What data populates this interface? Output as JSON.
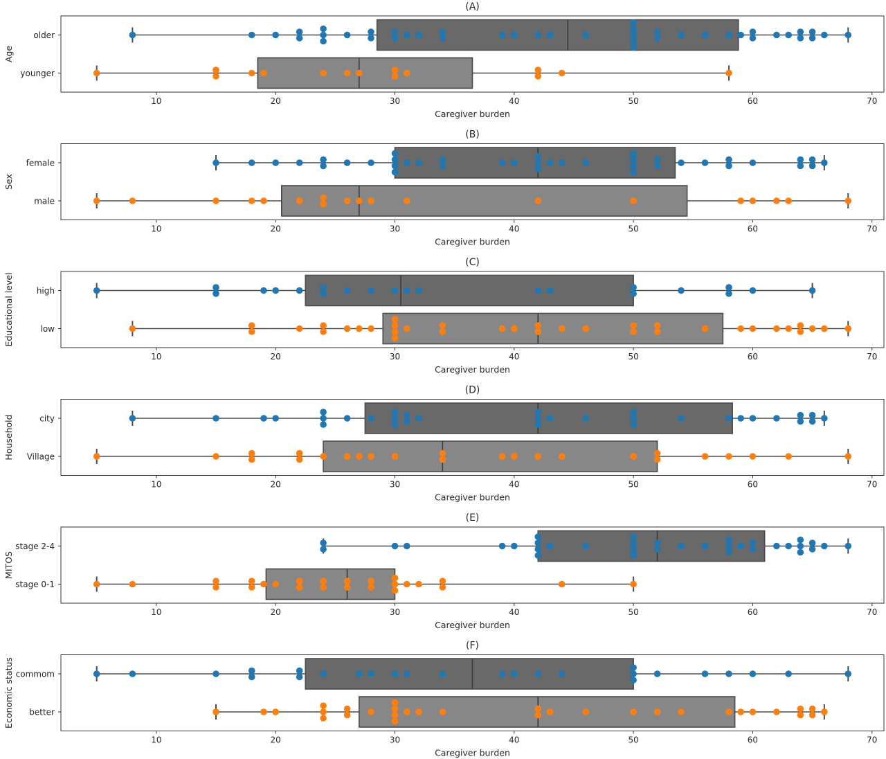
{
  "chart_data": [
    {
      "type": "box",
      "title": "(A)",
      "xlabel": "Caregiver burden",
      "ylabel": "Age",
      "xlim": [
        2,
        71
      ],
      "xticks": [
        10,
        20,
        30,
        40,
        50,
        60,
        70
      ],
      "groups": [
        {
          "category": "older",
          "color": "#1f77b4",
          "box_color": "#696969",
          "whisker_low": 8,
          "q1": 28.5,
          "median": 44.5,
          "q3": 58.8,
          "whisker_high": 68,
          "points": [
            8,
            18,
            20,
            22,
            22,
            24,
            24,
            24,
            26,
            28,
            28,
            30,
            30,
            31,
            32,
            34,
            34,
            39,
            40,
            42,
            43,
            46,
            50,
            50,
            50,
            50,
            50,
            52,
            52,
            54,
            56,
            58,
            59,
            60,
            60,
            62,
            63,
            64,
            64,
            65,
            65,
            66,
            68
          ]
        },
        {
          "category": "younger",
          "color": "#ff7f0e",
          "box_color": "#878787",
          "whisker_low": 5,
          "q1": 18.5,
          "median": 27,
          "q3": 36.5,
          "whisker_high": 58,
          "points": [
            5,
            15,
            15,
            18,
            19,
            24,
            26,
            27,
            30,
            30,
            31,
            42,
            42,
            44,
            58
          ]
        }
      ]
    },
    {
      "type": "box",
      "title": "(B)",
      "xlabel": "Caregiver burden",
      "ylabel": "Sex",
      "xlim": [
        2,
        71
      ],
      "xticks": [
        10,
        20,
        30,
        40,
        50,
        60,
        70
      ],
      "groups": [
        {
          "category": "female",
          "color": "#1f77b4",
          "box_color": "#696969",
          "whisker_low": 15,
          "q1": 30,
          "median": 42,
          "q3": 53.5,
          "whisker_high": 66,
          "points": [
            15,
            18,
            20,
            22,
            24,
            24,
            26,
            28,
            30,
            30,
            30,
            30,
            31,
            32,
            34,
            34,
            39,
            40,
            42,
            42,
            42,
            43,
            44,
            46,
            50,
            50,
            50,
            50,
            52,
            52,
            54,
            56,
            58,
            58,
            60,
            64,
            64,
            65,
            65,
            66
          ]
        },
        {
          "category": "male",
          "color": "#ff7f0e",
          "box_color": "#878787",
          "whisker_low": 5,
          "q1": 20.5,
          "median": 27,
          "q3": 54.5,
          "whisker_high": 68,
          "points": [
            5,
            8,
            15,
            18,
            19,
            22,
            24,
            24,
            26,
            27,
            28,
            31,
            42,
            50,
            59,
            60,
            62,
            63,
            68
          ]
        }
      ]
    },
    {
      "type": "box",
      "title": "(C)",
      "xlabel": "Caregiver burden",
      "ylabel": "Educational level",
      "xlim": [
        2,
        71
      ],
      "xticks": [
        10,
        20,
        30,
        40,
        50,
        60,
        70
      ],
      "groups": [
        {
          "category": "high",
          "color": "#1f77b4",
          "box_color": "#696969",
          "whisker_low": 5,
          "q1": 22.5,
          "median": 30.5,
          "q3": 50,
          "whisker_high": 65,
          "points": [
            5,
            15,
            15,
            19,
            20,
            22,
            24,
            24,
            26,
            28,
            30,
            31,
            32,
            42,
            43,
            50,
            50,
            54,
            58,
            58,
            60,
            65
          ]
        },
        {
          "category": "low",
          "color": "#ff7f0e",
          "box_color": "#878787",
          "whisker_low": 8,
          "q1": 29,
          "median": 42,
          "q3": 57.5,
          "whisker_high": 68,
          "points": [
            8,
            18,
            18,
            22,
            24,
            24,
            26,
            27,
            28,
            30,
            30,
            30,
            30,
            31,
            34,
            34,
            39,
            40,
            42,
            42,
            44,
            46,
            50,
            50,
            52,
            52,
            56,
            59,
            60,
            62,
            63,
            64,
            64,
            65,
            66,
            68
          ]
        }
      ]
    },
    {
      "type": "box",
      "title": "(D)",
      "xlabel": "Caregiver burden",
      "ylabel": "Household",
      "xlim": [
        2,
        71
      ],
      "xticks": [
        10,
        20,
        30,
        40,
        50,
        60,
        70
      ],
      "groups": [
        {
          "category": "city",
          "color": "#1f77b4",
          "box_color": "#696969",
          "whisker_low": 8,
          "q1": 27.5,
          "median": 42,
          "q3": 58.3,
          "whisker_high": 66,
          "points": [
            8,
            15,
            19,
            20,
            24,
            24,
            24,
            26,
            28,
            30,
            30,
            30,
            31,
            31,
            32,
            42,
            42,
            42,
            43,
            46,
            50,
            50,
            50,
            54,
            58,
            59,
            60,
            62,
            64,
            64,
            65,
            65,
            66
          ]
        },
        {
          "category": "Village",
          "color": "#ff7f0e",
          "box_color": "#878787",
          "whisker_low": 5,
          "q1": 24,
          "median": 34,
          "q3": 52,
          "whisker_high": 68,
          "points": [
            5,
            15,
            18,
            18,
            22,
            22,
            24,
            26,
            27,
            28,
            30,
            34,
            34,
            39,
            40,
            42,
            44,
            50,
            52,
            52,
            56,
            58,
            60,
            63,
            68
          ]
        }
      ]
    },
    {
      "type": "box",
      "title": "(E)",
      "xlabel": "Caregiver burden",
      "ylabel": "MITOS",
      "xlim": [
        2,
        71
      ],
      "xticks": [
        10,
        20,
        30,
        40,
        50,
        60,
        70
      ],
      "groups": [
        {
          "category": "stage 2-4",
          "color": "#1f77b4",
          "box_color": "#696969",
          "whisker_low": 24,
          "q1": 42,
          "median": 52,
          "q3": 61,
          "whisker_high": 68,
          "points": [
            24,
            24,
            30,
            31,
            39,
            40,
            42,
            42,
            42,
            42,
            43,
            46,
            50,
            50,
            50,
            50,
            52,
            52,
            54,
            56,
            58,
            58,
            58,
            59,
            60,
            60,
            62,
            63,
            64,
            64,
            64,
            65,
            65,
            66,
            68
          ]
        },
        {
          "category": "stage 0-1",
          "color": "#ff7f0e",
          "box_color": "#878787",
          "whisker_low": 5,
          "q1": 19.2,
          "median": 26,
          "q3": 30,
          "whisker_high": 50,
          "points": [
            5,
            8,
            15,
            15,
            18,
            18,
            19,
            20,
            22,
            22,
            24,
            24,
            26,
            26,
            28,
            28,
            30,
            30,
            30,
            31,
            32,
            34,
            34,
            44,
            50
          ]
        }
      ]
    },
    {
      "type": "box",
      "title": "(F)",
      "xlabel": "Caregiver burden",
      "ylabel": "Economic status",
      "xlim": [
        2,
        71
      ],
      "xticks": [
        10,
        20,
        30,
        40,
        50,
        60,
        70
      ],
      "groups": [
        {
          "category": "commom",
          "color": "#1f77b4",
          "box_color": "#696969",
          "whisker_low": 5,
          "q1": 22.5,
          "median": 36.5,
          "q3": 50,
          "whisker_high": 68,
          "points": [
            5,
            8,
            15,
            18,
            18,
            22,
            22,
            24,
            27,
            28,
            30,
            31,
            34,
            39,
            40,
            42,
            44,
            50,
            50,
            50,
            52,
            56,
            58,
            60,
            63,
            68
          ]
        },
        {
          "category": "better",
          "color": "#ff7f0e",
          "box_color": "#878787",
          "whisker_low": 15,
          "q1": 27,
          "median": 42,
          "q3": 58.5,
          "whisker_high": 66,
          "points": [
            15,
            19,
            20,
            24,
            24,
            24,
            26,
            26,
            28,
            30,
            30,
            30,
            30,
            31,
            32,
            34,
            42,
            42,
            43,
            46,
            50,
            52,
            54,
            58,
            59,
            60,
            62,
            64,
            64,
            65,
            65,
            66
          ]
        }
      ]
    }
  ]
}
